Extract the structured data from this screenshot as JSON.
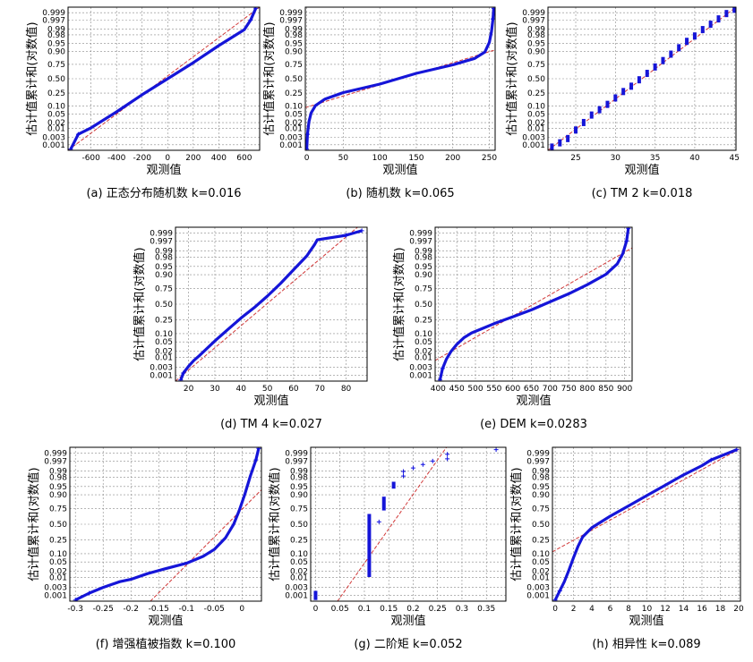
{
  "chart_data": [
    {
      "id": "a",
      "type": "scatter",
      "caption": "(a) 正态分布随机数 k=0.016",
      "xlabel": "观测值",
      "ylabel": "估计值累计和(对数值)",
      "xticks": [
        "-600",
        "-400",
        "-200",
        "0",
        "200",
        "400",
        "600"
      ],
      "xlim": [
        -780,
        720
      ],
      "yticks": [
        "0.001",
        "0.003",
        "0.01",
        "0.02",
        "0.05",
        "0.10",
        "0.25",
        "0.50",
        "0.75",
        "0.90",
        "0.95",
        "0.98",
        "0.99",
        "0.997",
        "0.999"
      ],
      "ylim_z": [
        -3.35,
        3.35
      ],
      "fit_line": [
        [
          -780,
          -3.35
        ],
        [
          720,
          3.35
        ]
      ],
      "series": [
        {
          "kind": "curve",
          "points": [
            [
              -760,
              -3.3
            ],
            [
              -700,
              -2.6
            ],
            [
              -600,
              -2.3
            ],
            [
              -400,
              -1.55
            ],
            [
              -200,
              -0.75
            ],
            [
              0,
              0.0
            ],
            [
              200,
              0.75
            ],
            [
              400,
              1.55
            ],
            [
              600,
              2.3
            ],
            [
              650,
              2.75
            ],
            [
              690,
              3.3
            ]
          ]
        }
      ]
    },
    {
      "id": "b",
      "type": "scatter",
      "caption": "(b) 随机数 k=0.065",
      "xlabel": "观测值",
      "ylabel": "估计值累计和(对数值)",
      "xticks": [
        "0",
        "50",
        "100",
        "150",
        "200",
        "250"
      ],
      "xlim": [
        -2,
        258
      ],
      "yticks": [
        "0.001",
        "0.003",
        "0.01",
        "0.02",
        "0.05",
        "0.10",
        "0.25",
        "0.50",
        "0.75",
        "0.90",
        "0.95",
        "0.98",
        "0.99",
        "0.997",
        "0.999"
      ],
      "ylim_z": [
        -3.35,
        3.35
      ],
      "fit_line": [
        [
          -2,
          -1.35
        ],
        [
          258,
          1.35
        ]
      ],
      "series": [
        {
          "kind": "curve",
          "points": [
            [
              0,
              -3.3
            ],
            [
              1,
              -2.6
            ],
            [
              3,
              -2.0
            ],
            [
              6,
              -1.6
            ],
            [
              12,
              -1.25
            ],
            [
              25,
              -0.95
            ],
            [
              50,
              -0.65
            ],
            [
              100,
              -0.25
            ],
            [
              150,
              0.25
            ],
            [
              200,
              0.65
            ],
            [
              230,
              0.95
            ],
            [
              244,
              1.25
            ],
            [
              250,
              1.7
            ],
            [
              253,
              2.2
            ],
            [
              255,
              2.8
            ],
            [
              256,
              3.3
            ]
          ]
        }
      ]
    },
    {
      "id": "c",
      "type": "scatter",
      "caption": "(c) TM 2 k=0.018",
      "xlabel": "观测值",
      "ylabel": "估计值累计和(对数值)",
      "xticks": [
        "25",
        "30",
        "35",
        "40",
        "45"
      ],
      "xlim": [
        21.5,
        45.2
      ],
      "yticks": [
        "0.001",
        "0.003",
        "0.01",
        "0.02",
        "0.05",
        "0.10",
        "0.25",
        "0.50",
        "0.75",
        "0.90",
        "0.95",
        "0.98",
        "0.99",
        "0.997",
        "0.999"
      ],
      "ylim_z": [
        -3.35,
        3.35
      ],
      "fit_line": [
        [
          21.5,
          -3.35
        ],
        [
          45.2,
          3.35
        ]
      ],
      "series": [
        {
          "kind": "steps",
          "points": [
            [
              22,
              -3.2
            ],
            [
              23,
              -3.0
            ],
            [
              24,
              -2.8
            ],
            [
              25,
              -2.4
            ],
            [
              26,
              -2.05
            ],
            [
              27,
              -1.7
            ],
            [
              28,
              -1.45
            ],
            [
              29,
              -1.2
            ],
            [
              30,
              -0.9
            ],
            [
              31,
              -0.6
            ],
            [
              32,
              -0.35
            ],
            [
              33,
              -0.05
            ],
            [
              34,
              0.25
            ],
            [
              35,
              0.55
            ],
            [
              36,
              0.85
            ],
            [
              37,
              1.15
            ],
            [
              38,
              1.45
            ],
            [
              39,
              1.75
            ],
            [
              40,
              2.0
            ],
            [
              41,
              2.3
            ],
            [
              42,
              2.55
            ],
            [
              43,
              2.8
            ],
            [
              44,
              3.05
            ],
            [
              45,
              3.25
            ]
          ]
        }
      ]
    },
    {
      "id": "d",
      "type": "scatter",
      "caption": "(d) TM 4 k=0.027",
      "xlabel": "观测值",
      "ylabel": "估计值累计和(对数值)",
      "xticks": [
        "20",
        "30",
        "40",
        "50",
        "60",
        "70",
        "80"
      ],
      "xlim": [
        15,
        88
      ],
      "yticks": [
        "0.001",
        "0.003",
        "0.01",
        "0.02",
        "0.05",
        "0.10",
        "0.25",
        "0.50",
        "0.75",
        "0.90",
        "0.95",
        "0.98",
        "0.99",
        "0.997",
        "0.999"
      ],
      "ylim_z": [
        -3.35,
        3.35
      ],
      "fit_line": [
        [
          15,
          -3.35
        ],
        [
          88,
          3.7
        ]
      ],
      "series": [
        {
          "kind": "curve",
          "points": [
            [
              17,
              -3.3
            ],
            [
              18,
              -3.0
            ],
            [
              20,
              -2.7
            ],
            [
              22,
              -2.45
            ],
            [
              24,
              -2.25
            ],
            [
              30,
              -1.6
            ],
            [
              35,
              -1.1
            ],
            [
              40,
              -0.6
            ],
            [
              45,
              -0.15
            ],
            [
              50,
              0.35
            ],
            [
              55,
              0.9
            ],
            [
              60,
              1.5
            ],
            [
              65,
              2.1
            ],
            [
              68,
              2.6
            ],
            [
              69,
              2.8
            ],
            [
              80,
              3.0
            ],
            [
              86,
              3.2
            ]
          ]
        }
      ]
    },
    {
      "id": "e",
      "type": "scatter",
      "caption": "(e) DEM k=0.0283",
      "xlabel": "观测值",
      "ylabel": "估计值累计和(对数值)",
      "xticks": [
        "400",
        "450",
        "500",
        "550",
        "600",
        "650",
        "700",
        "750",
        "800",
        "850",
        "900"
      ],
      "xlim": [
        392,
        920
      ],
      "yticks": [
        "0.001",
        "0.003",
        "0.01",
        "0.02",
        "0.05",
        "0.10",
        "0.25",
        "0.50",
        "0.75",
        "0.90",
        "0.95",
        "0.98",
        "0.99",
        "0.997",
        "0.999"
      ],
      "ylim_z": [
        -3.35,
        3.35
      ],
      "fit_line": [
        [
          392,
          -2.45
        ],
        [
          920,
          2.45
        ]
      ],
      "series": [
        {
          "kind": "curve",
          "points": [
            [
              405,
              -3.3
            ],
            [
              412,
              -2.8
            ],
            [
              422,
              -2.4
            ],
            [
              435,
              -2.05
            ],
            [
              450,
              -1.75
            ],
            [
              470,
              -1.45
            ],
            [
              490,
              -1.25
            ],
            [
              520,
              -1.05
            ],
            [
              550,
              -0.85
            ],
            [
              600,
              -0.55
            ],
            [
              650,
              -0.25
            ],
            [
              700,
              0.1
            ],
            [
              750,
              0.45
            ],
            [
              800,
              0.85
            ],
            [
              850,
              1.3
            ],
            [
              880,
              1.75
            ],
            [
              895,
              2.2
            ],
            [
              905,
              2.75
            ],
            [
              910,
              3.3
            ]
          ]
        }
      ]
    },
    {
      "id": "f",
      "type": "scatter",
      "caption": "(f) 增强植被指数 k=0.100",
      "xlabel": "观测值",
      "ylabel": "估计值累计和(对数值)",
      "xticks": [
        "-0.3",
        "-0.25",
        "-0.2",
        "-0.15",
        "-0.1",
        "-0.05",
        "0"
      ],
      "xlim": [
        -0.31,
        0.035
      ],
      "yticks": [
        "0.001",
        "0.003",
        "0.01",
        "0.02",
        "0.05",
        "0.10",
        "0.25",
        "0.50",
        "0.75",
        "0.90",
        "0.95",
        "0.98",
        "0.99",
        "0.997",
        "0.999"
      ],
      "ylim_z": [
        -3.35,
        3.35
      ],
      "fit_line": [
        [
          -0.165,
          -3.35
        ],
        [
          0.035,
          1.5
        ]
      ],
      "series": [
        {
          "kind": "curve",
          "points": [
            [
              -0.3,
              -3.3
            ],
            [
              -0.275,
              -3.0
            ],
            [
              -0.25,
              -2.75
            ],
            [
              -0.22,
              -2.5
            ],
            [
              -0.2,
              -2.4
            ],
            [
              -0.17,
              -2.15
            ],
            [
              -0.14,
              -1.95
            ],
            [
              -0.1,
              -1.7
            ],
            [
              -0.07,
              -1.4
            ],
            [
              -0.05,
              -1.1
            ],
            [
              -0.03,
              -0.6
            ],
            [
              -0.015,
              0.0
            ],
            [
              -0.005,
              0.6
            ],
            [
              0.005,
              1.3
            ],
            [
              0.015,
              2.1
            ],
            [
              0.025,
              2.8
            ],
            [
              0.03,
              3.3
            ]
          ]
        }
      ]
    },
    {
      "id": "g",
      "type": "scatter",
      "caption": "(g) 二阶矩 k=0.052",
      "xlabel": "观测值",
      "ylabel": "估计值累计和(对数值)",
      "xticks": [
        "0",
        "0.05",
        "0.1",
        "0.15",
        "0.2",
        "0.25",
        "0.3",
        "0.35"
      ],
      "xlim": [
        -0.01,
        0.39
      ],
      "yticks": [
        "0.001",
        "0.003",
        "0.01",
        "0.02",
        "0.05",
        "0.10",
        "0.25",
        "0.50",
        "0.75",
        "0.90",
        "0.95",
        "0.98",
        "0.99",
        "0.997",
        "0.999"
      ],
      "ylim_z": [
        -3.35,
        3.35
      ],
      "fit_line": [
        [
          0.0,
          -4.7
        ],
        [
          0.29,
          4.0
        ]
      ],
      "series": [
        {
          "kind": "vbars",
          "points": [
            [
              0.0,
              -3.3
            ],
            [
              0.0,
              -2.9
            ],
            [
              0.11,
              -2.3
            ],
            [
              0.11,
              -1.4
            ],
            [
              0.11,
              -0.4
            ],
            [
              0.11,
              0.45
            ],
            [
              0.13,
              0.1
            ],
            [
              0.14,
              0.6
            ],
            [
              0.14,
              1.2
            ],
            [
              0.16,
              1.55
            ],
            [
              0.16,
              1.85
            ],
            [
              0.18,
              2.1
            ],
            [
              0.18,
              2.3
            ],
            [
              0.2,
              2.45
            ],
            [
              0.22,
              2.6
            ],
            [
              0.24,
              2.75
            ],
            [
              0.27,
              2.85
            ],
            [
              0.27,
              3.05
            ],
            [
              0.37,
              3.25
            ]
          ]
        }
      ]
    },
    {
      "id": "h",
      "type": "scatter",
      "caption": "(h) 相异性 k=0.089",
      "xlabel": "观测值",
      "ylabel": "估计值累计和(对数值)",
      "xticks": [
        "0",
        "2",
        "4",
        "6",
        "8",
        "10",
        "12",
        "14",
        "16",
        "18",
        "20"
      ],
      "xlim": [
        -0.3,
        20.2
      ],
      "yticks": [
        "0.001",
        "0.003",
        "0.01",
        "0.02",
        "0.05",
        "0.10",
        "0.25",
        "0.50",
        "0.75",
        "0.90",
        "0.95",
        "0.98",
        "0.99",
        "0.997",
        "0.999"
      ],
      "ylim_z": [
        -3.35,
        3.35
      ],
      "fit_line": [
        [
          -0.3,
          -1.2
        ],
        [
          20.2,
          3.3
        ]
      ],
      "series": [
        {
          "kind": "curve",
          "points": [
            [
              0.0,
              -3.3
            ],
            [
              0.5,
              -2.9
            ],
            [
              1.0,
              -2.5
            ],
            [
              1.5,
              -2.0
            ],
            [
              2.0,
              -1.45
            ],
            [
              2.5,
              -0.95
            ],
            [
              3.0,
              -0.55
            ],
            [
              4.0,
              -0.15
            ],
            [
              5.0,
              0.1
            ],
            [
              6.0,
              0.35
            ],
            [
              8.0,
              0.8
            ],
            [
              10.0,
              1.25
            ],
            [
              12.0,
              1.7
            ],
            [
              14.0,
              2.15
            ],
            [
              16.0,
              2.55
            ],
            [
              17.0,
              2.8
            ],
            [
              19.8,
              3.25
            ]
          ]
        }
      ]
    }
  ]
}
